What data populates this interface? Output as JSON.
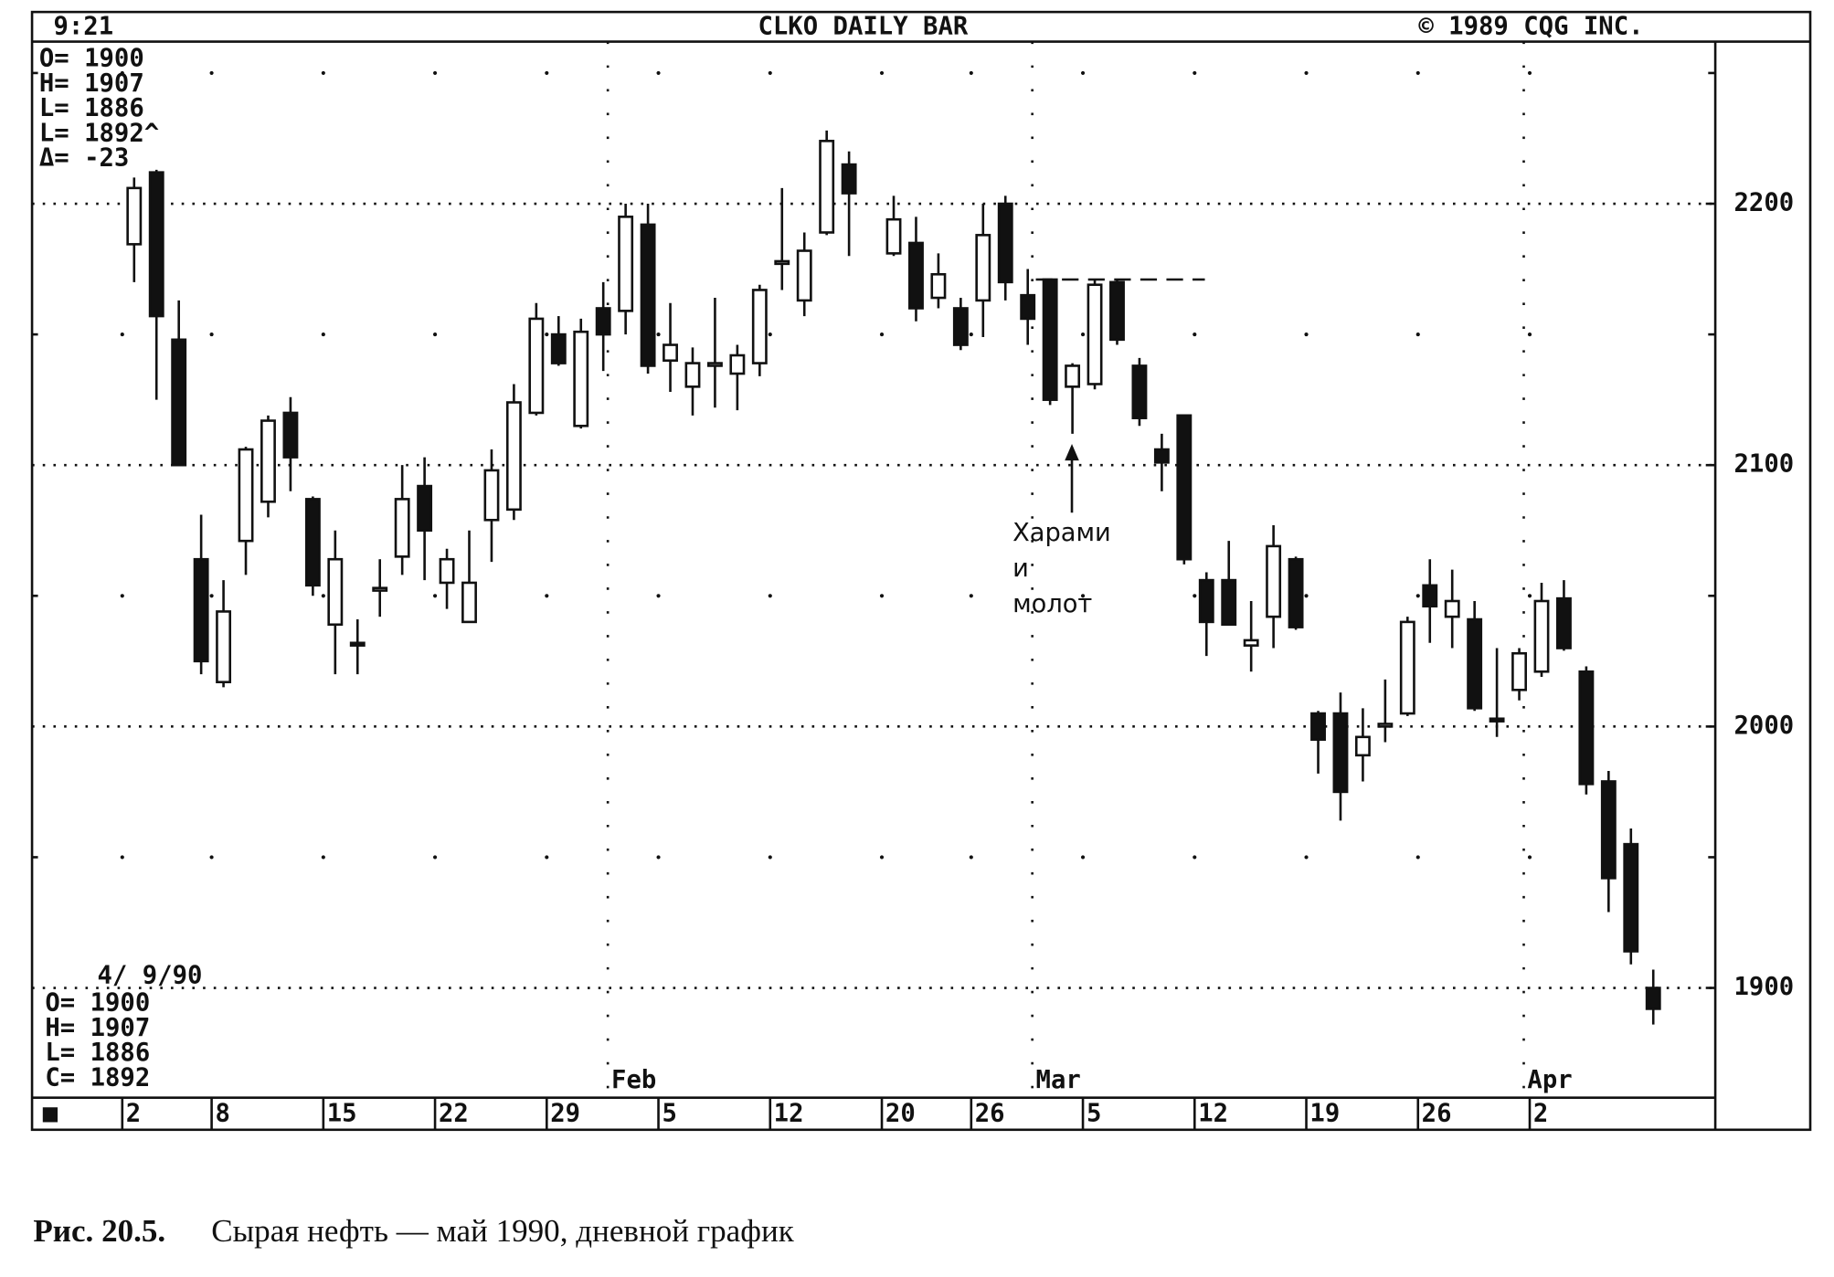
{
  "chart_data": {
    "type": "candlestick",
    "time": "9:21",
    "title": "CLKO DAILY BAR",
    "copyright": "© 1989 CQG INC.",
    "info_top": [
      "O= 1900",
      "H= 1907",
      "L= 1886",
      "L= 1892^",
      "Δ=  -23"
    ],
    "info_date": "4/ 9/90",
    "info_bottom": [
      "O= 1900",
      "H= 1907",
      "L= 1886",
      "C= 1892"
    ],
    "strip_marker": "■",
    "annotation": [
      "Харами",
      "и",
      "молот"
    ],
    "caption_label": "Рис. 20.5.",
    "caption": "Сырая нефть — май 1990, дневной график",
    "categories": [
      "2",
      null,
      null,
      null,
      "8",
      null,
      null,
      null,
      null,
      "15",
      null,
      null,
      null,
      null,
      "22",
      null,
      null,
      null,
      null,
      "29",
      null,
      null,
      null,
      null,
      "5",
      null,
      null,
      null,
      null,
      "12",
      null,
      null,
      null,
      null,
      "20",
      null,
      null,
      null,
      "26",
      null,
      null,
      null,
      null,
      "5",
      null,
      null,
      null,
      null,
      "12",
      null,
      null,
      null,
      null,
      "19",
      null,
      null,
      null,
      null,
      "26",
      null,
      null,
      null,
      null,
      "2",
      null,
      null,
      null,
      null,
      null
    ],
    "months": [
      {
        "label": "Feb",
        "index": 22
      },
      {
        "label": "Mar",
        "index": 41
      },
      {
        "label": "Apr",
        "index": 63
      }
    ],
    "open": [
      2184.5,
      2212,
      2148,
      2064,
      2017,
      2071,
      2086,
      2120,
      2087,
      2039,
      2032,
      2052,
      2065,
      2092,
      2055,
      2040,
      2079,
      2083,
      2120,
      2150,
      2115,
      2160,
      2159,
      2192,
      2140,
      2130,
      2138,
      2135,
      2139,
      2177,
      2163,
      2189,
      2215,
      null,
      2181,
      2185,
      2164,
      2160,
      2163,
      2200,
      2165,
      2171,
      2130,
      2131,
      2170,
      2138,
      2106,
      2119,
      2056,
      2056,
      2031,
      2042,
      2064,
      2005,
      2005,
      1989,
      2000,
      2005,
      2054,
      2042,
      2041,
      2003,
      2014,
      2021,
      2049,
      2021,
      1979,
      1955,
      1900
    ],
    "high": [
      2210,
      2213,
      2163,
      2081,
      2056,
      2107,
      2119,
      2126,
      2088,
      2075,
      2041,
      2064,
      2100,
      2103,
      2068,
      2075,
      2106,
      2131,
      2162,
      2157,
      2156,
      2170,
      2200,
      2200,
      2162,
      2145,
      2164,
      2146,
      2169,
      2206,
      2189,
      2228,
      2220,
      null,
      2203,
      2195,
      2181,
      2164,
      2200,
      2203,
      2175,
      2171,
      2139,
      2171,
      2171,
      2141,
      2112,
      2119,
      2059,
      2071,
      2048,
      2077,
      2065,
      2006,
      2013,
      2007,
      2018,
      2042,
      2064,
      2060,
      2048,
      2030,
      2030,
      2055,
      2056,
      2023,
      1983,
      1961,
      1907
    ],
    "low": [
      2170,
      2125,
      2100,
      2020,
      2015,
      2058,
      2080,
      2090,
      2050,
      2020,
      2020,
      2042,
      2058,
      2056,
      2045,
      2040,
      2063,
      2079,
      2119,
      2138,
      2114,
      2136,
      2150,
      2135,
      2128,
      2119,
      2122,
      2121,
      2134,
      2167,
      2157,
      2188,
      2180,
      null,
      2180,
      2155,
      2160,
      2144,
      2149,
      2163,
      2146,
      2123,
      2112,
      2129,
      2146,
      2115,
      2090,
      2062,
      2027,
      2039,
      2021,
      2030,
      2037,
      1982,
      1964,
      1979,
      1994,
      2004,
      2032,
      2030,
      2006,
      1996,
      2010,
      2019,
      2029,
      1974,
      1929,
      1909,
      1886
    ],
    "close": [
      2206,
      2157,
      2100,
      2025,
      2044,
      2106,
      2117,
      2103,
      2054,
      2064,
      2031,
      2053,
      2087,
      2075,
      2064,
      2055,
      2098,
      2124,
      2156,
      2139,
      2151,
      2150,
      2195,
      2138,
      2146,
      2139,
      2139,
      2142,
      2167,
      2178,
      2182,
      2224,
      2204,
      null,
      2194,
      2160,
      2173,
      2146,
      2188,
      2170,
      2156,
      2125,
      2138,
      2169,
      2148,
      2118,
      2101,
      2064,
      2040,
      2039,
      2033,
      2069,
      2038,
      1995,
      1975,
      1996,
      2001,
      2040,
      2046,
      2048,
      2007,
      2002,
      2028,
      2048,
      2030,
      1978,
      1942,
      1914,
      1892
    ],
    "level_line": 2171,
    "ylim": [
      1858,
      2262
    ],
    "yticks": [
      1900,
      2000,
      2100,
      2200
    ],
    "minor_yticks": [
      1950,
      2050,
      2150,
      2250
    ],
    "grid": true,
    "up_color": "#ffffff",
    "down_color": "#111111"
  }
}
